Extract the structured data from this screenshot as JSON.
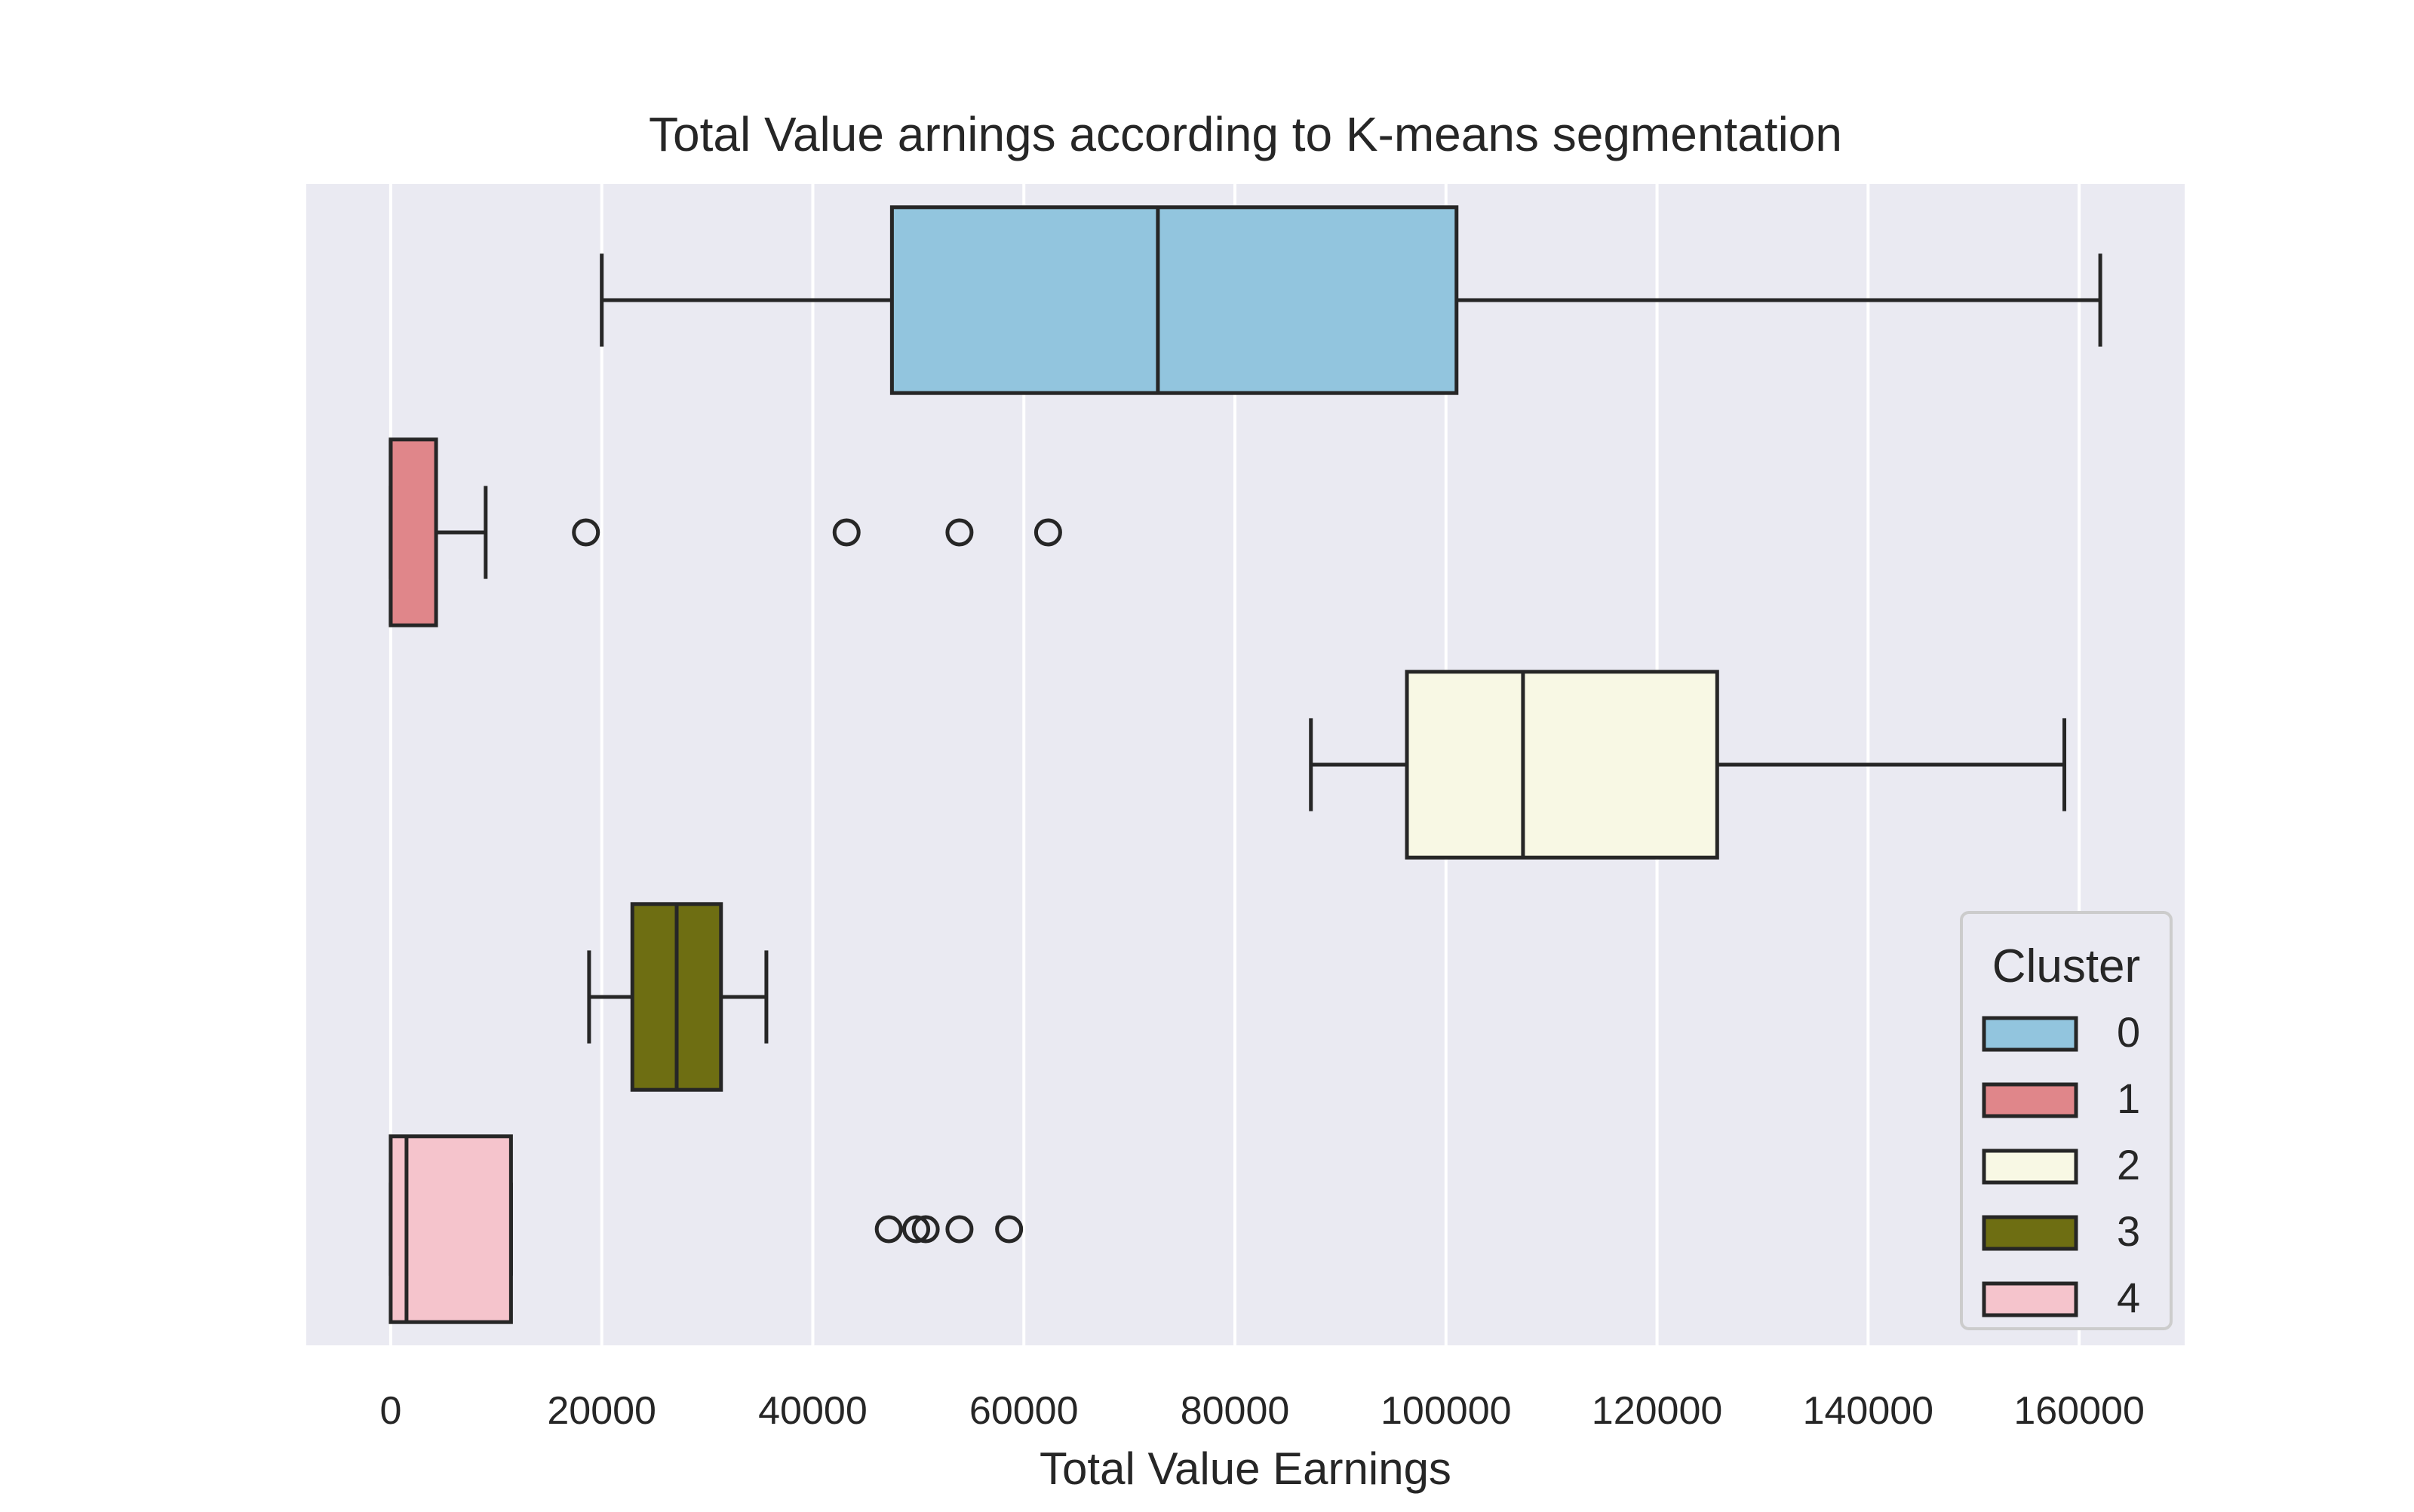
{
  "chart_data": {
    "type": "boxplot",
    "orientation": "horizontal",
    "title": "Total Value arnings according to K-means segmentation",
    "xlabel": "Total Value Earnings",
    "ylabel": "",
    "xlim": [
      -8000,
      170000
    ],
    "x_ticks": [
      0,
      20000,
      40000,
      60000,
      80000,
      100000,
      120000,
      140000,
      160000
    ],
    "x_tick_labels": [
      "0",
      "20000",
      "40000",
      "60000",
      "80000",
      "100000",
      "120000",
      "140000",
      "160000"
    ],
    "grid": "vertical",
    "background_color": "#eaeaf2",
    "legend": {
      "title": "Cluster",
      "placement": "lower-right",
      "entries": [
        "0",
        "1",
        "2",
        "3",
        "4"
      ]
    },
    "series": [
      {
        "name": "0",
        "color": "#92c5de",
        "whisker_low": 20000,
        "q1": 47500,
        "median": 72700,
        "q3": 101000,
        "whisker_high": 162000,
        "outliers": []
      },
      {
        "name": "1",
        "color": "#e0868a",
        "whisker_low": 0,
        "q1": 0,
        "median": 0,
        "q3": 4300,
        "whisker_high": 9000,
        "outliers": [
          18500,
          43200,
          53900,
          62300
        ]
      },
      {
        "name": "2",
        "color": "#f8f8e4",
        "whisker_low": 87200,
        "q1": 96300,
        "median": 107300,
        "q3": 125700,
        "whisker_high": 158600,
        "outliers": []
      },
      {
        "name": "3",
        "color": "#6e6e12",
        "whisker_low": 18800,
        "q1": 22900,
        "median": 27100,
        "q3": 31300,
        "whisker_high": 35600,
        "outliers": []
      },
      {
        "name": "4",
        "color": "#f5c4cc",
        "whisker_low": 0,
        "q1": 0,
        "median": 1500,
        "q3": 11400,
        "whisker_high": 11400,
        "outliers": [
          47200,
          49800,
          50700,
          53900,
          58600
        ]
      }
    ]
  }
}
